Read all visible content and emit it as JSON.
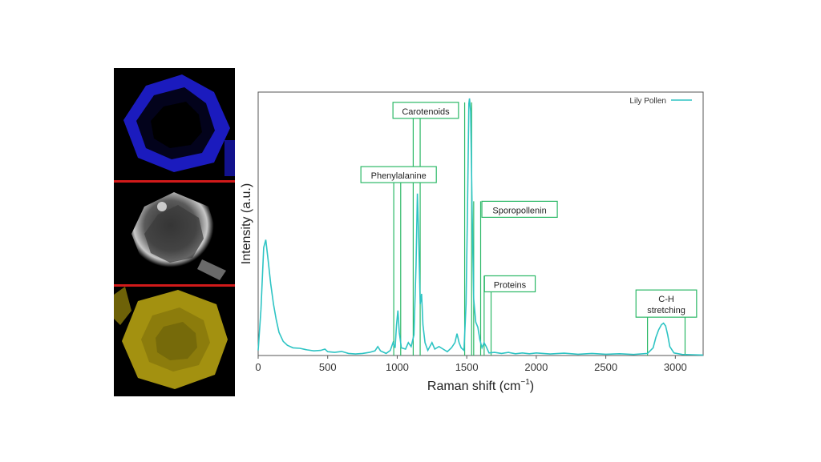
{
  "colors": {
    "spectrum": "#2ec4c4",
    "annotation": "#2bb866",
    "divider": "#d11a1a",
    "panel1": "#2a2ae0",
    "panel2": "#d0d0d0",
    "panel3": "#9c8c0c"
  },
  "image_panels": [
    {
      "name": "blue-fluorescence-image"
    },
    {
      "name": "grayscale-image"
    },
    {
      "name": "yellow-fluorescence-image"
    }
  ],
  "chart_data": {
    "type": "line",
    "xlabel": "Raman shift (cm",
    "xlabel_sup": "−1",
    "xlabel_close": ")",
    "ylabel": "Intensity (a.u.)",
    "xlim": [
      0,
      3200
    ],
    "ylim": [
      0,
      1.0
    ],
    "xticks": [
      0,
      500,
      1000,
      1500,
      2000,
      2500,
      3000
    ],
    "xtick_labels": [
      "0",
      "500",
      "1000",
      "1500",
      "2000",
      "2500",
      "3000"
    ],
    "legend": {
      "position": "top-right",
      "label": "Lily Pollen"
    },
    "series": [
      {
        "name": "Lily Pollen",
        "points": [
          [
            0,
            0.02
          ],
          [
            20,
            0.18
          ],
          [
            40,
            0.42
          ],
          [
            55,
            0.45
          ],
          [
            70,
            0.38
          ],
          [
            90,
            0.28
          ],
          [
            110,
            0.2
          ],
          [
            130,
            0.14
          ],
          [
            150,
            0.09
          ],
          [
            180,
            0.055
          ],
          [
            210,
            0.04
          ],
          [
            250,
            0.03
          ],
          [
            300,
            0.028
          ],
          [
            350,
            0.022
          ],
          [
            400,
            0.018
          ],
          [
            450,
            0.02
          ],
          [
            480,
            0.025
          ],
          [
            500,
            0.015
          ],
          [
            550,
            0.012
          ],
          [
            600,
            0.016
          ],
          [
            650,
            0.008
          ],
          [
            700,
            0.006
          ],
          [
            750,
            0.008
          ],
          [
            800,
            0.012
          ],
          [
            840,
            0.018
          ],
          [
            860,
            0.035
          ],
          [
            880,
            0.018
          ],
          [
            920,
            0.008
          ],
          [
            950,
            0.02
          ],
          [
            970,
            0.05
          ],
          [
            985,
            0.03
          ],
          [
            995,
            0.12
          ],
          [
            1005,
            0.175
          ],
          [
            1015,
            0.09
          ],
          [
            1030,
            0.03
          ],
          [
            1060,
            0.025
          ],
          [
            1080,
            0.05
          ],
          [
            1100,
            0.035
          ],
          [
            1120,
            0.08
          ],
          [
            1135,
            0.35
          ],
          [
            1145,
            0.63
          ],
          [
            1155,
            0.45
          ],
          [
            1165,
            0.2
          ],
          [
            1175,
            0.24
          ],
          [
            1185,
            0.12
          ],
          [
            1200,
            0.05
          ],
          [
            1220,
            0.02
          ],
          [
            1250,
            0.05
          ],
          [
            1270,
            0.025
          ],
          [
            1300,
            0.035
          ],
          [
            1330,
            0.025
          ],
          [
            1360,
            0.015
          ],
          [
            1390,
            0.03
          ],
          [
            1415,
            0.05
          ],
          [
            1430,
            0.085
          ],
          [
            1445,
            0.05
          ],
          [
            1460,
            0.03
          ],
          [
            1480,
            0.02
          ],
          [
            1495,
            0.2
          ],
          [
            1505,
            0.55
          ],
          [
            1515,
            0.98
          ],
          [
            1520,
            1.0
          ],
          [
            1528,
            0.95
          ],
          [
            1538,
            0.6
          ],
          [
            1550,
            0.22
          ],
          [
            1565,
            0.13
          ],
          [
            1580,
            0.11
          ],
          [
            1595,
            0.06
          ],
          [
            1610,
            0.03
          ],
          [
            1625,
            0.05
          ],
          [
            1640,
            0.035
          ],
          [
            1660,
            0.01
          ],
          [
            1700,
            0.012
          ],
          [
            1750,
            0.008
          ],
          [
            1800,
            0.012
          ],
          [
            1850,
            0.007
          ],
          [
            1900,
            0.01
          ],
          [
            1950,
            0.007
          ],
          [
            2000,
            0.01
          ],
          [
            2100,
            0.006
          ],
          [
            2200,
            0.009
          ],
          [
            2300,
            0.005
          ],
          [
            2400,
            0.008
          ],
          [
            2500,
            0.005
          ],
          [
            2600,
            0.007
          ],
          [
            2700,
            0.004
          ],
          [
            2800,
            0.008
          ],
          [
            2840,
            0.03
          ],
          [
            2860,
            0.07
          ],
          [
            2880,
            0.1
          ],
          [
            2900,
            0.12
          ],
          [
            2915,
            0.126
          ],
          [
            2930,
            0.115
          ],
          [
            2945,
            0.08
          ],
          [
            2960,
            0.035
          ],
          [
            2990,
            0.01
          ],
          [
            3050,
            0.004
          ],
          [
            3120,
            0.003
          ],
          [
            3200,
            0.002
          ]
        ]
      }
    ],
    "annotations": [
      {
        "label": "Carotenoids",
        "lines": [
          "Carotenoids"
        ],
        "lines_x": [
          1115,
          1165,
          1485,
          1535
        ],
        "box_center_x": 1205,
        "box_level": 0.985
      },
      {
        "label": "Phenylalanine",
        "lines": [
          "Phenylalanine"
        ],
        "lines_x": [
          975,
          1025
        ],
        "box_center_x": 1010,
        "box_level": 0.735
      },
      {
        "label": "Sporopollenin",
        "lines": [
          "Sporopollenin"
        ],
        "lines_x": [
          1550,
          1600
        ],
        "box_center_x": 1880,
        "box_level": 0.6
      },
      {
        "label": "Proteins",
        "lines": [
          "Proteins"
        ],
        "lines_x": [
          1625,
          1675
        ],
        "box_center_x": 1810,
        "box_level": 0.31
      },
      {
        "label": "C-H stretching",
        "lines": [
          "C-H",
          "stretching"
        ],
        "lines_x": [
          2800,
          3070
        ],
        "box_center_x": 2935,
        "box_level": 0.255
      }
    ]
  }
}
